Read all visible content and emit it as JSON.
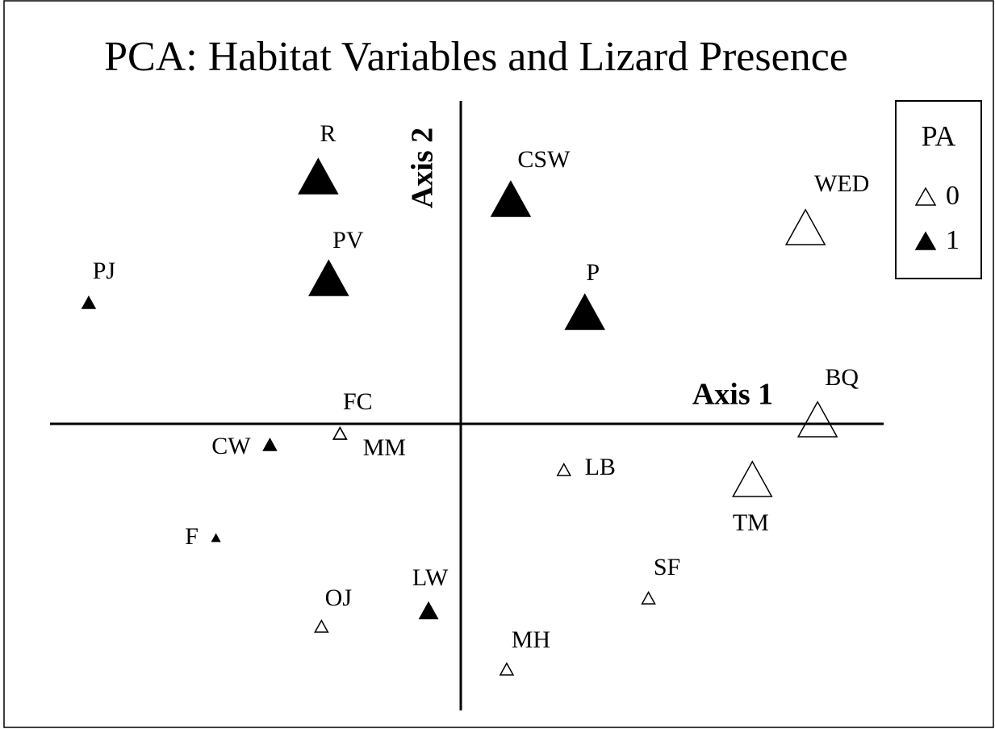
{
  "chart_data": {
    "type": "scatter",
    "title": "PCA: Habitat Variables and Lizard Presence",
    "x_label": "Axis 1",
    "y_label": "Axis 2",
    "legend_title": "PA",
    "legend": "upper right",
    "xlim": [
      -5.1,
      5.25
    ],
    "ylim": [
      -3.55,
      4.0
    ],
    "series": [
      {
        "name": "0",
        "color": "#000000",
        "filled": false,
        "labels": [
          "WED",
          "BQ",
          "FC",
          "MM",
          "LB",
          "TM",
          "SF",
          "OJ",
          "MH"
        ],
        "x": [
          4.28,
          4.43,
          -1.5,
          -1.5,
          1.28,
          3.62,
          2.33,
          -1.73,
          0.57
        ],
        "values": [
          2.4,
          0.02,
          -0.13,
          -0.13,
          -0.58,
          -0.72,
          -2.17,
          -2.52,
          -3.05
        ],
        "sizes": [
          3,
          3,
          1,
          1,
          1,
          3,
          1,
          1,
          1
        ]
      },
      {
        "name": "1",
        "color": "#000000",
        "filled": true,
        "labels": [
          "R",
          "CSW",
          "PV",
          "PJ",
          "P",
          "CW",
          "F",
          "LW"
        ],
        "x": [
          -1.77,
          0.62,
          -1.64,
          -4.62,
          1.54,
          -2.37,
          -3.04,
          -0.4
        ],
        "values": [
          3.03,
          2.75,
          1.77,
          1.49,
          1.35,
          -0.27,
          -1.42,
          -2.33
        ],
        "sizes": [
          3,
          3,
          3,
          1,
          3,
          1,
          0.6,
          1.4
        ]
      }
    ]
  }
}
